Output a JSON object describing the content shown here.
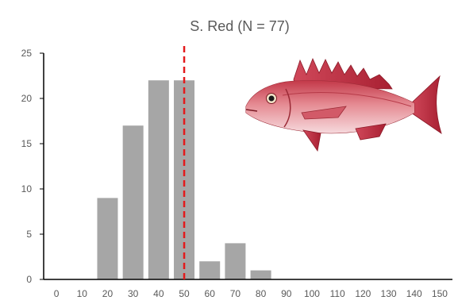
{
  "chart_data": {
    "type": "bar",
    "title": "S. Red (N = 77)",
    "xlabel": "",
    "ylabel": "",
    "categories": [
      "0",
      "10",
      "20",
      "30",
      "40",
      "50",
      "60",
      "70",
      "80",
      "90",
      "100",
      "110",
      "120",
      "130",
      "140",
      "150"
    ],
    "values": [
      0,
      0,
      9,
      17,
      22,
      22,
      2,
      4,
      1,
      0,
      0,
      0,
      0,
      0,
      0,
      0
    ],
    "ylim": [
      0,
      25
    ],
    "yticks": [
      0,
      5,
      10,
      15,
      20,
      25
    ],
    "grid": false,
    "bar_color": "#a6a6a6",
    "reference_line": {
      "x": 50,
      "style": "dashed",
      "color": "#e31a1c"
    }
  },
  "colors": {
    "axis": "#000000",
    "text": "#595959"
  },
  "illustration": {
    "icon": "red-snapper-fish-icon"
  }
}
